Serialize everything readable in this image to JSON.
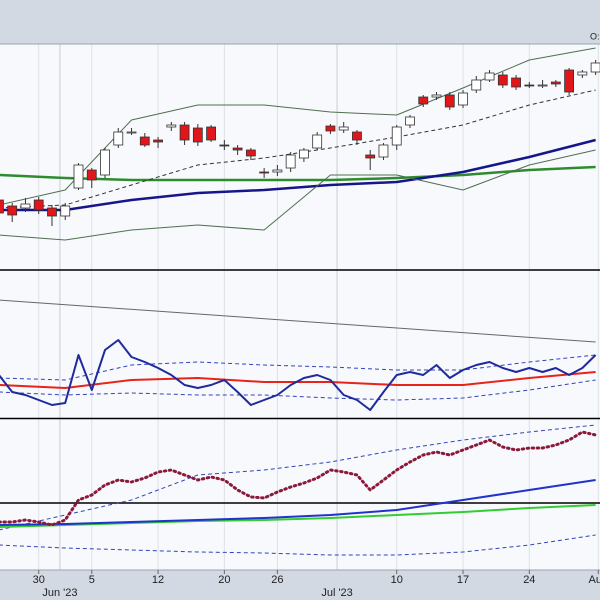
{
  "header_text": "O:",
  "chart_data": [
    {
      "type": "candlestick",
      "x": [
        0,
        1,
        2,
        3,
        4,
        5,
        6,
        7,
        8,
        9,
        10,
        11,
        12,
        13,
        14,
        15,
        16,
        17,
        18,
        19,
        20,
        21,
        22,
        23,
        24,
        25,
        26,
        27,
        28,
        29,
        30,
        31,
        32,
        33,
        34,
        35,
        36,
        37,
        38,
        39,
        40,
        41,
        42,
        43,
        44,
        45
      ],
      "open": [
        70,
        64,
        62,
        70,
        62,
        54,
        82,
        100,
        95,
        125,
        138,
        133,
        130,
        143,
        145,
        142,
        143,
        125,
        122,
        120,
        98,
        98,
        102,
        112,
        122,
        144,
        140,
        138,
        115,
        113,
        125,
        145,
        173,
        173,
        175,
        165,
        180,
        190,
        195,
        192,
        185,
        185,
        188,
        200,
        195,
        198
      ],
      "close": [
        57,
        55,
        66,
        60,
        54,
        64,
        105,
        90,
        120,
        138,
        138,
        125,
        128,
        145,
        130,
        128,
        130,
        124,
        120,
        114,
        97,
        100,
        115,
        120,
        135,
        139,
        143,
        130,
        112,
        125,
        143,
        153,
        166,
        175,
        163,
        177,
        190,
        197,
        185,
        183,
        184,
        185,
        186,
        178,
        198,
        207
      ],
      "high": [
        74,
        67,
        72,
        73,
        65,
        67,
        107,
        102,
        122,
        142,
        142,
        137,
        133,
        148,
        148,
        146,
        145,
        130,
        125,
        122,
        102,
        105,
        118,
        122,
        138,
        146,
        148,
        140,
        120,
        127,
        145,
        155,
        175,
        178,
        178,
        180,
        194,
        200,
        198,
        195,
        188,
        190,
        190,
        202,
        200,
        210
      ],
      "low": [
        52,
        48,
        58,
        56,
        44,
        50,
        80,
        82,
        92,
        122,
        135,
        123,
        122,
        139,
        125,
        124,
        128,
        120,
        115,
        110,
        92,
        94,
        98,
        108,
        120,
        136,
        137,
        125,
        100,
        110,
        120,
        142,
        163,
        170,
        160,
        162,
        177,
        188,
        182,
        180,
        182,
        182,
        183,
        175,
        192,
        195
      ],
      "up_color": "#ffffff",
      "down_color": "#e0161b",
      "series": [
        {
          "color": "#2e8b2e",
          "style": "solid",
          "width": 2.5,
          "x": [
            0,
            5,
            10,
            15,
            20,
            25,
            30,
            35,
            40,
            45
          ],
          "values": [
            95,
            92,
            90,
            90,
            90,
            90,
            92,
            95,
            100,
            103
          ]
        },
        {
          "color": "#16168a",
          "style": "solid",
          "width": 2.5,
          "x": [
            0,
            5,
            10,
            15,
            20,
            25,
            30,
            35,
            40,
            45
          ],
          "values": [
            60,
            60,
            70,
            77,
            80,
            85,
            88,
            98,
            113,
            130
          ]
        },
        {
          "color": "#333333",
          "style": "dashed",
          "width": 1,
          "x": [
            0,
            5,
            10,
            15,
            20,
            25,
            30,
            35,
            40,
            45
          ],
          "values": [
            62,
            65,
            85,
            105,
            112,
            122,
            133,
            145,
            165,
            180
          ]
        },
        {
          "color": "#4f6f4f",
          "style": "solid",
          "width": 1,
          "x": [
            0,
            5,
            10,
            15,
            20,
            25,
            30,
            35,
            40,
            45
          ],
          "values": [
            65,
            80,
            150,
            165,
            165,
            158,
            155,
            182,
            210,
            222
          ]
        },
        {
          "color": "#4f6f4f",
          "style": "solid",
          "width": 1,
          "x": [
            0,
            5,
            10,
            15,
            20,
            25,
            30,
            35,
            40,
            45
          ],
          "values": [
            35,
            30,
            40,
            45,
            40,
            95,
            95,
            80,
            105,
            120
          ]
        }
      ],
      "xlim": [
        0.08,
        45.33
      ],
      "ylim": [
        0,
        226
      ]
    },
    {
      "type": "line",
      "series": [
        {
          "color": "#666666",
          "style": "solid",
          "width": 1,
          "x": [
            0,
            45
          ],
          "values": [
            118,
            76
          ]
        },
        {
          "color": "#3344bb",
          "style": "dashed",
          "width": 1,
          "x": [
            0,
            5,
            10,
            15,
            20,
            25,
            30,
            35,
            40,
            45
          ],
          "values": [
            40,
            38,
            53,
            56,
            53,
            51,
            48,
            48,
            56,
            63
          ]
        },
        {
          "color": "#3344bb",
          "style": "dashed",
          "width": 1,
          "x": [
            0,
            5,
            10,
            15,
            20,
            25,
            30,
            35,
            40,
            45
          ],
          "values": [
            26,
            23,
            25,
            23,
            23,
            20,
            18,
            20,
            28,
            38
          ]
        },
        {
          "color": "#e8231a",
          "style": "solid",
          "width": 2,
          "x": [
            0,
            5,
            10,
            15,
            20,
            25,
            30,
            35,
            40,
            45
          ],
          "values": [
            33,
            30,
            38,
            40,
            36,
            36,
            33,
            33,
            40,
            46
          ]
        },
        {
          "color": "#1f2a9c",
          "style": "solid",
          "width": 2,
          "x": [
            0,
            1,
            2,
            3,
            4,
            5,
            6,
            7,
            8,
            9,
            10,
            11,
            12,
            13,
            14,
            15,
            16,
            17,
            18,
            19,
            20,
            21,
            22,
            23,
            24,
            25,
            26,
            27,
            28,
            29,
            30,
            31,
            32,
            33,
            34,
            35,
            36,
            37,
            38,
            39,
            40,
            41,
            42,
            43,
            44,
            45
          ],
          "values": [
            43,
            26,
            23,
            18,
            13,
            15,
            63,
            28,
            68,
            78,
            61,
            56,
            50,
            43,
            33,
            30,
            33,
            38,
            26,
            13,
            18,
            23,
            33,
            40,
            43,
            38,
            23,
            18,
            8,
            26,
            43,
            46,
            43,
            53,
            40,
            48,
            53,
            56,
            50,
            46,
            50,
            46,
            50,
            43,
            50,
            63
          ]
        }
      ],
      "xlim": [
        0.08,
        45.33
      ],
      "ylim": [
        0,
        146
      ]
    },
    {
      "type": "line",
      "hline": 67,
      "series": [
        {
          "color": "#3344bb",
          "style": "dashed",
          "width": 1,
          "x": [
            0,
            5,
            10,
            15,
            20,
            25,
            30,
            35,
            40,
            45
          ],
          "values": [
            40,
            55,
            70,
            95,
            100,
            108,
            120,
            130,
            138,
            145
          ]
        },
        {
          "color": "#3344bb",
          "style": "dashed",
          "width": 1,
          "x": [
            0,
            5,
            10,
            15,
            20,
            25,
            30,
            35,
            40,
            45
          ],
          "values": [
            25,
            22,
            20,
            18,
            17,
            15,
            15,
            18,
            25,
            35
          ]
        },
        {
          "color": "#33cc33",
          "style": "solid",
          "width": 2,
          "x": [
            0,
            5,
            10,
            15,
            20,
            25,
            30,
            35,
            40,
            45
          ],
          "values": [
            43,
            45,
            47,
            49,
            50,
            52,
            55,
            58,
            62,
            65
          ]
        },
        {
          "color": "#2233cc",
          "style": "solid",
          "width": 2,
          "x": [
            0,
            5,
            10,
            15,
            20,
            25,
            30,
            35,
            40,
            45
          ],
          "values": [
            45,
            46,
            48,
            50,
            52,
            55,
            60,
            70,
            80,
            90
          ]
        },
        {
          "color": "#8b1a3a",
          "style": "dotted",
          "width": 3,
          "x": [
            0,
            1,
            2,
            3,
            4,
            5,
            6,
            7,
            8,
            9,
            10,
            11,
            12,
            13,
            14,
            15,
            16,
            17,
            18,
            19,
            20,
            21,
            22,
            23,
            24,
            25,
            26,
            27,
            28,
            29,
            30,
            31,
            32,
            33,
            34,
            35,
            36,
            37,
            38,
            39,
            40,
            41,
            42,
            43,
            44,
            45
          ],
          "values": [
            48,
            48,
            50,
            48,
            45,
            50,
            70,
            75,
            85,
            90,
            88,
            92,
            98,
            100,
            95,
            90,
            93,
            90,
            80,
            73,
            72,
            78,
            83,
            87,
            92,
            100,
            98,
            95,
            80,
            90,
            100,
            108,
            115,
            118,
            115,
            120,
            125,
            130,
            123,
            120,
            122,
            122,
            125,
            130,
            138,
            135
          ]
        }
      ],
      "xlim": [
        0.08,
        45.33
      ],
      "ylim": [
        0,
        150
      ],
      "xticks": [
        {
          "value": 3,
          "label": "30"
        },
        {
          "value": 7,
          "label": "5"
        },
        {
          "value": 12,
          "label": "12"
        },
        {
          "value": 17,
          "label": "20"
        },
        {
          "value": 21,
          "label": "26"
        },
        {
          "value": 30,
          "label": "10"
        },
        {
          "value": 35,
          "label": "17"
        },
        {
          "value": 40,
          "label": "24"
        },
        {
          "value": 45.2,
          "label": "Aug"
        }
      ],
      "month_ticks": [
        {
          "value": 4.6,
          "label": "Jun '23"
        },
        {
          "value": 25.5,
          "label": "Jul '23"
        }
      ]
    }
  ]
}
